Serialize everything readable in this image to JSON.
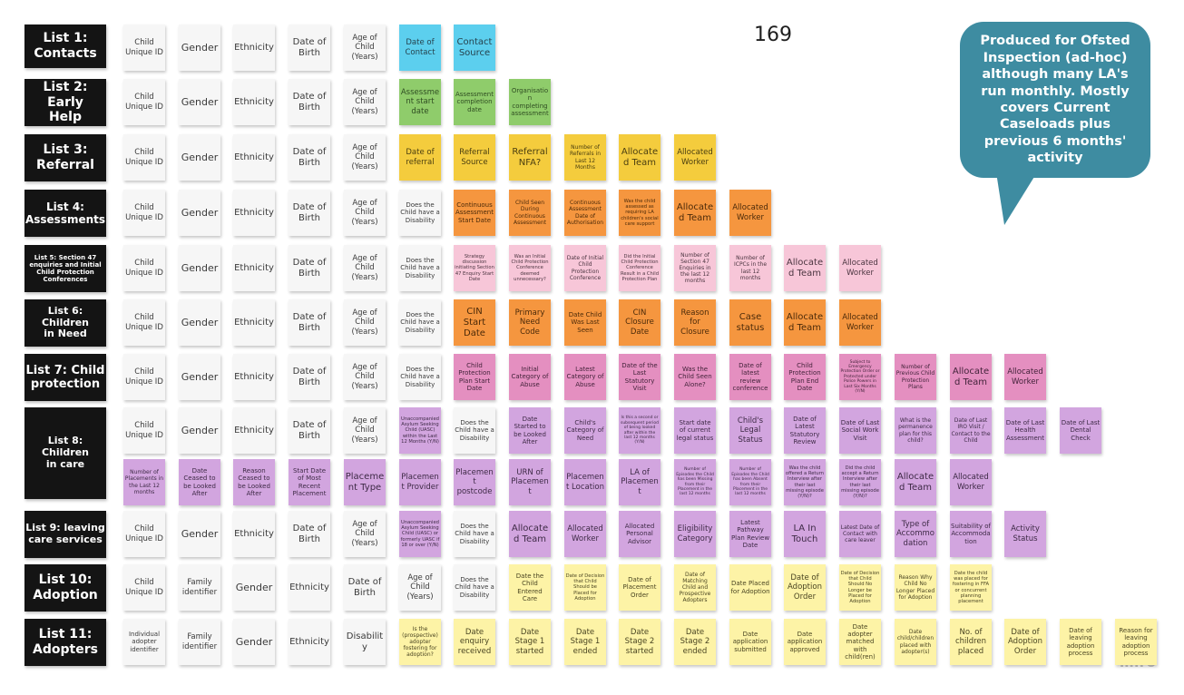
{
  "page_number": "169",
  "callout": "Produced for Ofsted Inspection (ad-hoc) although many LA's run monthly. Mostly covers Current Caseloads plus previous 6 months' activity",
  "watermark": "miro",
  "legend_colors": {
    "w": "#f6f6f6",
    "b": "#5ccfee",
    "g": "#8fcc6b",
    "y": "#f4cc3d",
    "o": "#f5963f",
    "p": "#f7c6d8",
    "m": "#e48fc0",
    "u": "#d2a5df",
    "l": "#fdf3a6"
  },
  "lists": [
    {
      "title": "List 1:\nContacts",
      "rows": [
        [
          {
            "t": "Child Unique ID",
            "c": "w"
          },
          {
            "t": "Gender",
            "c": "w"
          },
          {
            "t": "Ethnicity",
            "c": "w"
          },
          {
            "t": "Date of Birth",
            "c": "w"
          },
          {
            "t": "Age of Child (Years)",
            "c": "w"
          },
          {
            "t": "Date of Contact",
            "c": "b"
          },
          {
            "t": "Contact Source",
            "c": "b"
          }
        ]
      ]
    },
    {
      "title": "List 2: Early\nHelp",
      "rows": [
        [
          {
            "t": "Child Unique ID",
            "c": "w"
          },
          {
            "t": "Gender",
            "c": "w"
          },
          {
            "t": "Ethnicity",
            "c": "w"
          },
          {
            "t": "Date of Birth",
            "c": "w"
          },
          {
            "t": "Age of Child (Years)",
            "c": "w"
          },
          {
            "t": "Assessment start date",
            "c": "g"
          },
          {
            "t": "Assessment completion date",
            "c": "g"
          },
          {
            "t": "Organisation completing assessment",
            "c": "g"
          }
        ]
      ]
    },
    {
      "title": "List 3:\nReferral",
      "rows": [
        [
          {
            "t": "Child Unique ID",
            "c": "w"
          },
          {
            "t": "Gender",
            "c": "w"
          },
          {
            "t": "Ethnicity",
            "c": "w"
          },
          {
            "t": "Date of Birth",
            "c": "w"
          },
          {
            "t": "Age of Child (Years)",
            "c": "w"
          },
          {
            "t": "Date of referral",
            "c": "y"
          },
          {
            "t": "Referral Source",
            "c": "y"
          },
          {
            "t": "Referral NFA?",
            "c": "y"
          },
          {
            "t": "Number of Referrals in Last 12 Months",
            "c": "y"
          },
          {
            "t": "Allocated Team",
            "c": "y"
          },
          {
            "t": "Allocated Worker",
            "c": "y"
          }
        ]
      ]
    },
    {
      "title": "List 4:\nAssessments",
      "rows": [
        [
          {
            "t": "Child Unique ID",
            "c": "w"
          },
          {
            "t": "Gender",
            "c": "w"
          },
          {
            "t": "Ethnicity",
            "c": "w"
          },
          {
            "t": "Date of Birth",
            "c": "w"
          },
          {
            "t": "Age of Child (Years)",
            "c": "w"
          },
          {
            "t": "Does the Child have a Disability",
            "c": "w"
          },
          {
            "t": "Continuous Assessment Start Date",
            "c": "o"
          },
          {
            "t": "Child Seen During Continuous Assessment",
            "c": "o"
          },
          {
            "t": "Continuous Assessment Date of Authorisation",
            "c": "o"
          },
          {
            "t": "Was the child assessed as requiring LA children's social care support",
            "c": "o"
          },
          {
            "t": "Allocated Team",
            "c": "o"
          },
          {
            "t": "Allocated Worker",
            "c": "o"
          }
        ]
      ]
    },
    {
      "title": "List 5:   Section 47 enquiries and Initial Child Protection Conferences",
      "rows": [
        [
          {
            "t": "Child Unique ID",
            "c": "w"
          },
          {
            "t": "Gender",
            "c": "w"
          },
          {
            "t": "Ethnicity",
            "c": "w"
          },
          {
            "t": "Date of Birth",
            "c": "w"
          },
          {
            "t": "Age of Child (Years)",
            "c": "w"
          },
          {
            "t": "Does the Child have a Disability",
            "c": "w"
          },
          {
            "t": "Strategy discussion initiating Section 47 Enquiry Start Date",
            "c": "p"
          },
          {
            "t": "Was an Initial Child Protection Conference deemed unnecessary?",
            "c": "p"
          },
          {
            "t": "Date of Initial Child Protection Conference",
            "c": "p"
          },
          {
            "t": "Did the Initial Child Protection Conference Result in a Child Protection Plan",
            "c": "p"
          },
          {
            "t": "Number of Section 47 Enquiries in the last 12 months",
            "c": "p"
          },
          {
            "t": "Number of ICPCs in the last 12 months",
            "c": "p"
          },
          {
            "t": "Allocated Team",
            "c": "p"
          },
          {
            "t": "Allocated Worker",
            "c": "p"
          }
        ]
      ]
    },
    {
      "title": "List 6:  Children\nin Need",
      "rows": [
        [
          {
            "t": "Child Unique ID",
            "c": "w"
          },
          {
            "t": "Gender",
            "c": "w"
          },
          {
            "t": "Ethnicity",
            "c": "w"
          },
          {
            "t": "Date of Birth",
            "c": "w"
          },
          {
            "t": "Age of Child (Years)",
            "c": "w"
          },
          {
            "t": "Does the Child have a Disability",
            "c": "w"
          },
          {
            "t": "CIN Start Date",
            "c": "o"
          },
          {
            "t": "Primary Need Code",
            "c": "o"
          },
          {
            "t": "Date Child Was Last Seen",
            "c": "o"
          },
          {
            "t": "CIN Closure Date",
            "c": "o"
          },
          {
            "t": "Reason for Closure",
            "c": "o"
          },
          {
            "t": "Case status",
            "c": "o"
          },
          {
            "t": "Allocated Team",
            "c": "o"
          },
          {
            "t": "Allocated Worker",
            "c": "o"
          }
        ]
      ]
    },
    {
      "title": "List 7:   Child\nprotection",
      "rows": [
        [
          {
            "t": "Child Unique ID",
            "c": "w"
          },
          {
            "t": "Gender",
            "c": "w"
          },
          {
            "t": "Ethnicity",
            "c": "w"
          },
          {
            "t": "Date of Birth",
            "c": "w"
          },
          {
            "t": "Age of Child (Years)",
            "c": "w"
          },
          {
            "t": "Does the Child have a Disability",
            "c": "w"
          },
          {
            "t": "Child Protection Plan Start Date",
            "c": "m"
          },
          {
            "t": "Initial Category of Abuse",
            "c": "m"
          },
          {
            "t": "Latest Category of Abuse",
            "c": "m"
          },
          {
            "t": "Date of the Last Statutory Visit",
            "c": "m"
          },
          {
            "t": "Was the Child Seen Alone?",
            "c": "m"
          },
          {
            "t": "Date of latest review conference",
            "c": "m"
          },
          {
            "t": "Child Protection Plan End Date",
            "c": "m"
          },
          {
            "t": "Subject to Emergency Protection Order or Protected under Police Powers in Last Six Months (Y/N)",
            "c": "m"
          },
          {
            "t": "Number of Previous Child Protection Plans",
            "c": "m"
          },
          {
            "t": "Allocated Team",
            "c": "m"
          },
          {
            "t": "Allocated Worker",
            "c": "m"
          }
        ]
      ]
    },
    {
      "title": "List 8: Children\nin care",
      "rows": [
        [
          {
            "t": "Child Unique ID",
            "c": "w"
          },
          {
            "t": "Gender",
            "c": "w"
          },
          {
            "t": "Ethnicity",
            "c": "w"
          },
          {
            "t": "Date of Birth",
            "c": "w"
          },
          {
            "t": "Age of Child (Years)",
            "c": "w"
          },
          {
            "t": "Unaccompanied Asylum Seeking Child (UASC) within the Last 12 Months (Y/N)",
            "c": "u"
          },
          {
            "t": "Does the Child have a Disability",
            "c": "w"
          },
          {
            "t": "Date Started to be Looked After",
            "c": "u"
          },
          {
            "t": "Child's Category of Need",
            "c": "u"
          },
          {
            "t": "Is this a second or subsequent period of being looked after within the last 12 months (Y/N)",
            "c": "u"
          },
          {
            "t": "Start date of current legal status",
            "c": "u"
          },
          {
            "t": "Child's Legal Status",
            "c": "u"
          },
          {
            "t": "Date of Latest Statutory Review",
            "c": "u"
          },
          {
            "t": "Date of Last Social Work Visit",
            "c": "u"
          },
          {
            "t": "What is the permanence plan for this child?",
            "c": "u"
          },
          {
            "t": "Date of Last IRO Visit / Contact to the Child",
            "c": "u"
          },
          {
            "t": "Date of Last Health Assessment",
            "c": "u"
          },
          {
            "t": "Date of Last Dental Check",
            "c": "u"
          }
        ],
        [
          {
            "t": "Number of Placements in the Last 12 months",
            "c": "u"
          },
          {
            "t": "Date Ceased to be Looked After",
            "c": "u"
          },
          {
            "t": "Reason Ceased to be Looked After",
            "c": "u"
          },
          {
            "t": "Start Date of Most Recent Placement",
            "c": "u"
          },
          {
            "t": "Placement Type",
            "c": "u"
          },
          {
            "t": "Placement Provider",
            "c": "u"
          },
          {
            "t": "Placement postcode",
            "c": "u"
          },
          {
            "t": "URN of Placement",
            "c": "u"
          },
          {
            "t": "Placement Location",
            "c": "u"
          },
          {
            "t": "LA of Placement",
            "c": "u"
          },
          {
            "t": "Number of Episodes the Child has been Missing from their Placement in the last 12 months",
            "c": "u"
          },
          {
            "t": "Number of Episodes the Child has been Absent from their Placement in the last 12 months",
            "c": "u"
          },
          {
            "t": "Was the child offered a Return Interview after their last missing episode (Y/N)?",
            "c": "u"
          },
          {
            "t": "Did the child accept a Return Interview after their last missing episode (Y/N)?",
            "c": "u"
          },
          {
            "t": "Allocated Team",
            "c": "u"
          },
          {
            "t": "Allocated Worker",
            "c": "u"
          }
        ]
      ]
    },
    {
      "title": "List 9:   leaving\ncare services",
      "rows": [
        [
          {
            "t": "Child Unique ID",
            "c": "w"
          },
          {
            "t": "Gender",
            "c": "w"
          },
          {
            "t": "Ethnicity",
            "c": "w"
          },
          {
            "t": "Date of Birth",
            "c": "w"
          },
          {
            "t": "Age of Child (Years)",
            "c": "w"
          },
          {
            "t": "Unaccompanied Asylum Seeking Child (UASC) or formerly UASC if 18 or over (Y/N)",
            "c": "u"
          },
          {
            "t": "Does the Child have a Disability",
            "c": "w"
          },
          {
            "t": "Allocated Team",
            "c": "u"
          },
          {
            "t": "Allocated Worker",
            "c": "u"
          },
          {
            "t": "Allocated Personal Advisor",
            "c": "u"
          },
          {
            "t": "Eligibility Category",
            "c": "u"
          },
          {
            "t": "Latest Pathway Plan Review Date",
            "c": "u"
          },
          {
            "t": "LA In Touch",
            "c": "u"
          },
          {
            "t": "Latest Date of Contact with care leaver",
            "c": "u"
          },
          {
            "t": "Type of Accommodation",
            "c": "u"
          },
          {
            "t": "Suitability of Accommodation",
            "c": "u"
          },
          {
            "t": "Activity Status",
            "c": "u"
          }
        ]
      ]
    },
    {
      "title": "List   10:\nAdoption",
      "rows": [
        [
          {
            "t": "Child Unique ID",
            "c": "w"
          },
          {
            "t": "Family identifier",
            "c": "w"
          },
          {
            "t": "Gender",
            "c": "w"
          },
          {
            "t": "Ethnicity",
            "c": "w"
          },
          {
            "t": "Date of Birth",
            "c": "w"
          },
          {
            "t": "Age of Child (Years)",
            "c": "w"
          },
          {
            "t": "Does the Child have a Disability",
            "c": "w"
          },
          {
            "t": "Date the Child Entered Care",
            "c": "l"
          },
          {
            "t": "Date of Decision that Child Should be Placed for Adoption",
            "c": "l"
          },
          {
            "t": "Date of Placement Order",
            "c": "l"
          },
          {
            "t": "Date of Matching Child and Prospective Adopters",
            "c": "l"
          },
          {
            "t": "Date Placed for Adoption",
            "c": "l"
          },
          {
            "t": "Date of Adoption Order",
            "c": "l"
          },
          {
            "t": "Date of Decision that Child Should No Longer be Placed for Adoption",
            "c": "l"
          },
          {
            "t": "Reason Why Child No Longer Placed for Adoption",
            "c": "l"
          },
          {
            "t": "Date the child was placed for fostering in FFA or concurrent planning placement",
            "c": "l"
          }
        ]
      ]
    },
    {
      "title": "List   11:\nAdopters",
      "rows": [
        [
          {
            "t": "Individual adopter identifier",
            "c": "w"
          },
          {
            "t": "Family identifier",
            "c": "w"
          },
          {
            "t": "Gender",
            "c": "w"
          },
          {
            "t": "Ethnicity",
            "c": "w"
          },
          {
            "t": "Disability",
            "c": "w"
          },
          {
            "t": "Is the (prospective) adopter fostering for adoption?",
            "c": "l"
          },
          {
            "t": "Date enquiry received",
            "c": "l"
          },
          {
            "t": "Date Stage 1 started",
            "c": "l"
          },
          {
            "t": "Date Stage 1 ended",
            "c": "l"
          },
          {
            "t": "Date Stage 2 started",
            "c": "l"
          },
          {
            "t": "Date Stage 2 ended",
            "c": "l"
          },
          {
            "t": "Date application submitted",
            "c": "l"
          },
          {
            "t": "Date application approved",
            "c": "l"
          },
          {
            "t": "Date adopter matched with child(ren)",
            "c": "l"
          },
          {
            "t": "Date child/children placed with adopter(s)",
            "c": "l"
          },
          {
            "t": "No. of children placed",
            "c": "l"
          },
          {
            "t": "Date of Adoption Order",
            "c": "l"
          },
          {
            "t": "Date of leaving adoption process",
            "c": "l"
          },
          {
            "t": "Reason for leaving adoption process",
            "c": "l"
          }
        ]
      ]
    }
  ]
}
